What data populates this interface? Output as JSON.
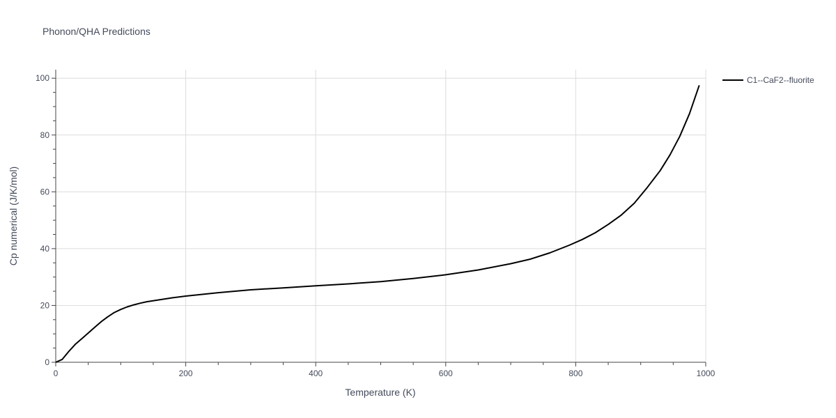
{
  "chart_data": {
    "type": "line",
    "title": "Phonon/QHA Predictions",
    "xlabel": "Temperature (K)",
    "ylabel": "Cp numerical (J/K/mol)",
    "xlim": [
      0,
      1000
    ],
    "ylim": [
      0,
      103
    ],
    "x_ticks": [
      0,
      200,
      400,
      600,
      800,
      1000
    ],
    "y_ticks": [
      0,
      20,
      40,
      60,
      80,
      100
    ],
    "x_tick_labels": [
      "0",
      "200",
      "400",
      "600",
      "800",
      "1000"
    ],
    "y_tick_labels": [
      "0",
      "20",
      "40",
      "60",
      "80",
      "100"
    ],
    "grid": true,
    "legend_position": "top-right, outside plot",
    "series": [
      {
        "name": "C1--CaF2--fluorite",
        "color": "#000000",
        "x": [
          0,
          10,
          20,
          30,
          40,
          50,
          60,
          70,
          80,
          90,
          100,
          110,
          120,
          130,
          140,
          160,
          180,
          200,
          250,
          300,
          350,
          400,
          450,
          500,
          550,
          600,
          650,
          700,
          730,
          760,
          790,
          810,
          830,
          850,
          870,
          890,
          910,
          930,
          945,
          960,
          975,
          990
        ],
        "y": [
          0,
          1.0,
          3.8,
          6.3,
          8.3,
          10.3,
          12.3,
          14.3,
          16.0,
          17.5,
          18.6,
          19.5,
          20.2,
          20.8,
          21.3,
          22.0,
          22.7,
          23.3,
          24.5,
          25.5,
          26.2,
          26.9,
          27.6,
          28.4,
          29.5,
          30.8,
          32.5,
          34.7,
          36.3,
          38.5,
          41.2,
          43.2,
          45.6,
          48.5,
          51.8,
          56.0,
          61.5,
          67.5,
          73.0,
          79.5,
          87.5,
          97.5
        ]
      }
    ]
  }
}
